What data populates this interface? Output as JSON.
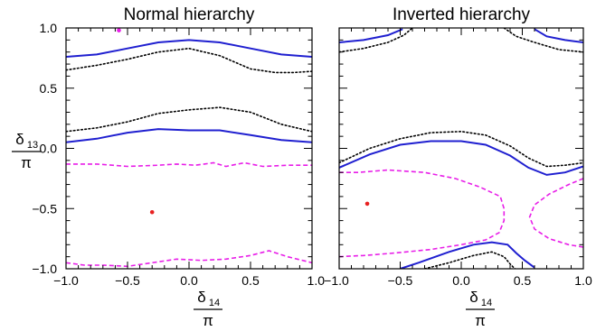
{
  "chart_data": [
    {
      "type": "line",
      "title": "Normal hierarchy",
      "xlabel": {
        "symbol": "δ",
        "subscript": "14",
        "denominator": "π"
      },
      "ylabel": {
        "symbol": "δ",
        "subscript": "13",
        "denominator": "π"
      },
      "xlim": [
        -1.0,
        1.0
      ],
      "ylim": [
        -1.0,
        1.0
      ],
      "xticks": [
        -1.0,
        -0.5,
        0.0,
        0.5,
        1.0
      ],
      "xtick_labels": [
        "−1.0",
        "−0.5",
        "0.0",
        "0.5",
        "1.0"
      ],
      "yticks": [
        -1.0,
        -0.5,
        0.0,
        0.5,
        1.0
      ],
      "ytick_labels": [
        "−1.0",
        "−0.5",
        "0.0",
        "0.5",
        "1.0"
      ],
      "grid": false,
      "series": [
        {
          "style": "solid",
          "color": "#1f1fd0",
          "points": [
            [
              -1.0,
              0.76
            ],
            [
              -0.75,
              0.78
            ],
            [
              -0.5,
              0.83
            ],
            [
              -0.25,
              0.88
            ],
            [
              0.0,
              0.9
            ],
            [
              0.25,
              0.88
            ],
            [
              0.5,
              0.83
            ],
            [
              0.75,
              0.78
            ],
            [
              1.0,
              0.76
            ]
          ]
        },
        {
          "style": "dotted",
          "color": "#000000",
          "points": [
            [
              -1.0,
              0.65
            ],
            [
              -0.75,
              0.69
            ],
            [
              -0.5,
              0.74
            ],
            [
              -0.25,
              0.8
            ],
            [
              0.0,
              0.83
            ],
            [
              0.25,
              0.77
            ],
            [
              0.5,
              0.66
            ],
            [
              0.7,
              0.63
            ],
            [
              0.85,
              0.63
            ],
            [
              1.0,
              0.64
            ]
          ]
        },
        {
          "style": "dotted",
          "color": "#000000",
          "points": [
            [
              -1.0,
              0.14
            ],
            [
              -0.75,
              0.17
            ],
            [
              -0.5,
              0.22
            ],
            [
              -0.25,
              0.29
            ],
            [
              0.0,
              0.32
            ],
            [
              0.25,
              0.34
            ],
            [
              0.5,
              0.3
            ],
            [
              0.75,
              0.2
            ],
            [
              1.0,
              0.14
            ]
          ]
        },
        {
          "style": "solid",
          "color": "#1f1fd0",
          "points": [
            [
              -1.0,
              0.05
            ],
            [
              -0.75,
              0.08
            ],
            [
              -0.5,
              0.13
            ],
            [
              -0.25,
              0.16
            ],
            [
              0.0,
              0.15
            ],
            [
              0.25,
              0.15
            ],
            [
              0.5,
              0.11
            ],
            [
              0.75,
              0.07
            ],
            [
              1.0,
              0.05
            ]
          ]
        },
        {
          "style": "dashed",
          "color": "#e81ee8",
          "points": [
            [
              -1.0,
              -0.13
            ],
            [
              -0.75,
              -0.13
            ],
            [
              -0.5,
              -0.15
            ],
            [
              -0.25,
              -0.14
            ],
            [
              -0.1,
              -0.13
            ],
            [
              0.05,
              -0.14
            ],
            [
              0.2,
              -0.12
            ],
            [
              0.3,
              -0.15
            ],
            [
              0.45,
              -0.12
            ],
            [
              0.6,
              -0.15
            ],
            [
              0.8,
              -0.14
            ],
            [
              1.0,
              -0.14
            ]
          ]
        },
        {
          "style": "dashed",
          "color": "#e81ee8",
          "points": [
            [
              -1.0,
              -0.95
            ],
            [
              -0.85,
              -0.97
            ],
            [
              -0.7,
              -0.97
            ],
            [
              -0.5,
              -0.98
            ],
            [
              -0.3,
              -0.95
            ],
            [
              -0.1,
              -0.92
            ],
            [
              0.1,
              -0.93
            ],
            [
              0.3,
              -0.92
            ],
            [
              0.5,
              -0.89
            ],
            [
              0.65,
              -0.85
            ],
            [
              0.8,
              -0.9
            ],
            [
              1.0,
              -0.95
            ]
          ]
        }
      ],
      "points": [
        {
          "x": -0.3,
          "y": -0.53,
          "color": "#e82020"
        },
        {
          "x": -0.57,
          "y": 0.98,
          "color": "#e81ee8"
        }
      ]
    },
    {
      "type": "line",
      "title": "Inverted hierarchy",
      "xlabel": {
        "symbol": "δ",
        "subscript": "14",
        "denominator": "π"
      },
      "xlim": [
        -1.0,
        1.0
      ],
      "ylim": [
        -1.0,
        1.0
      ],
      "xticks": [
        -1.0,
        -0.5,
        0.0,
        0.5,
        1.0
      ],
      "xtick_labels": [
        "−1.0",
        "−0.5",
        "0.0",
        "0.5",
        "1.0"
      ],
      "yticks": [
        -1.0,
        -0.5,
        0.0,
        0.5,
        1.0
      ],
      "grid": false,
      "series": [
        {
          "style": "solid",
          "color": "#1f1fd0",
          "points": [
            [
              -1.0,
              0.88
            ],
            [
              -0.8,
              0.9
            ],
            [
              -0.6,
              0.94
            ],
            [
              -0.48,
              0.99
            ]
          ]
        },
        {
          "style": "dotted",
          "color": "#000000",
          "points": [
            [
              -1.0,
              0.8
            ],
            [
              -0.8,
              0.83
            ],
            [
              -0.6,
              0.88
            ],
            [
              -0.47,
              0.94
            ],
            [
              -0.4,
              1.0
            ]
          ]
        },
        {
          "style": "solid",
          "color": "#1f1fd0",
          "points": [
            [
              0.6,
              0.99
            ],
            [
              0.7,
              0.93
            ],
            [
              0.85,
              0.9
            ],
            [
              1.0,
              0.88
            ]
          ]
        },
        {
          "style": "dotted",
          "color": "#000000",
          "points": [
            [
              0.35,
              1.0
            ],
            [
              0.45,
              0.93
            ],
            [
              0.6,
              0.88
            ],
            [
              0.8,
              0.82
            ],
            [
              1.0,
              0.8
            ]
          ]
        },
        {
          "style": "dotted",
          "color": "#000000",
          "points": [
            [
              -1.0,
              -0.12
            ],
            [
              -0.75,
              0.0
            ],
            [
              -0.5,
              0.08
            ],
            [
              -0.25,
              0.13
            ],
            [
              0.0,
              0.14
            ],
            [
              0.2,
              0.11
            ],
            [
              0.4,
              0.02
            ],
            [
              0.55,
              -0.08
            ],
            [
              0.7,
              -0.15
            ],
            [
              0.85,
              -0.14
            ],
            [
              1.0,
              -0.12
            ]
          ]
        },
        {
          "style": "solid",
          "color": "#1f1fd0",
          "points": [
            [
              -1.0,
              -0.16
            ],
            [
              -0.75,
              -0.05
            ],
            [
              -0.5,
              0.03
            ],
            [
              -0.25,
              0.06
            ],
            [
              0.0,
              0.06
            ],
            [
              0.2,
              0.03
            ],
            [
              0.4,
              -0.06
            ],
            [
              0.55,
              -0.16
            ],
            [
              0.7,
              -0.22
            ],
            [
              0.85,
              -0.2
            ],
            [
              1.0,
              -0.15
            ]
          ]
        },
        {
          "style": "dashed",
          "color": "#e81ee8",
          "points": [
            [
              -1.0,
              -0.2
            ],
            [
              -0.85,
              -0.2
            ],
            [
              -0.6,
              -0.18
            ],
            [
              -0.3,
              -0.2
            ],
            [
              -0.05,
              -0.25
            ],
            [
              0.15,
              -0.32
            ],
            [
              0.32,
              -0.4
            ],
            [
              0.35,
              -0.5
            ],
            [
              0.35,
              -0.6
            ],
            [
              0.31,
              -0.7
            ],
            [
              0.2,
              -0.76
            ],
            [
              0.0,
              -0.8
            ],
            [
              -0.25,
              -0.84
            ],
            [
              -0.55,
              -0.87
            ],
            [
              -0.8,
              -0.89
            ],
            [
              -1.0,
              -0.9
            ]
          ]
        },
        {
          "style": "dashed",
          "color": "#e81ee8",
          "points": [
            [
              1.0,
              -0.25
            ],
            [
              0.88,
              -0.3
            ],
            [
              0.72,
              -0.38
            ],
            [
              0.6,
              -0.47
            ],
            [
              0.56,
              -0.57
            ],
            [
              0.6,
              -0.67
            ],
            [
              0.72,
              -0.75
            ],
            [
              0.88,
              -0.8
            ],
            [
              1.0,
              -0.82
            ]
          ]
        },
        {
          "style": "solid",
          "color": "#1f1fd0",
          "points": [
            [
              -0.5,
              -1.0
            ],
            [
              -0.35,
              -0.95
            ],
            [
              -0.1,
              -0.86
            ],
            [
              0.1,
              -0.8
            ],
            [
              0.25,
              -0.78
            ],
            [
              0.38,
              -0.8
            ],
            [
              0.45,
              -0.87
            ],
            [
              0.52,
              -0.93
            ],
            [
              0.6,
              -0.99
            ]
          ]
        },
        {
          "style": "dotted",
          "color": "#000000",
          "points": [
            [
              -0.3,
              -1.0
            ],
            [
              -0.1,
              -0.95
            ],
            [
              0.1,
              -0.89
            ],
            [
              0.25,
              -0.86
            ],
            [
              0.35,
              -0.9
            ],
            [
              0.4,
              -0.96
            ],
            [
              0.44,
              -1.0
            ]
          ]
        }
      ],
      "points": [
        {
          "x": -0.77,
          "y": -0.46,
          "color": "#e82020"
        }
      ]
    }
  ]
}
